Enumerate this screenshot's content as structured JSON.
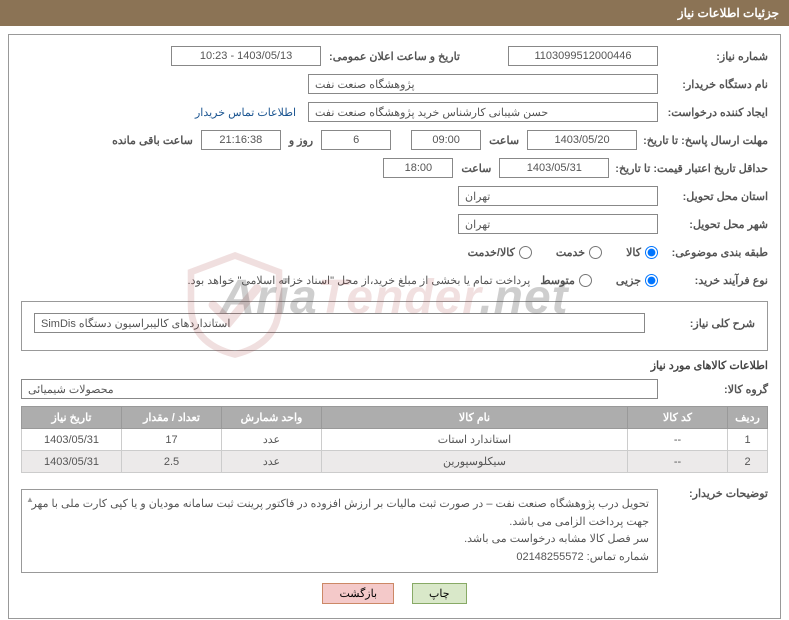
{
  "panel_title": "جزئیات اطلاعات نیاز",
  "labels": {
    "need_no": "شماره نیاز:",
    "announce_dt": "تاریخ و ساعت اعلان عمومی:",
    "buyer_org": "نام دستگاه خریدار:",
    "requester": "ایجاد کننده درخواست:",
    "contact_link": "اطلاعات تماس خریدار",
    "deadline": "مهلت ارسال پاسخ:",
    "until_date": "تا تاریخ:",
    "time": "ساعت",
    "days_and": "روز و",
    "remaining": "ساعت باقی مانده",
    "price_valid": "حداقل تاریخ اعتبار قیمت:",
    "to_date": "تا تاریخ:",
    "province": "استان محل تحویل:",
    "city": "شهر محل تحویل:",
    "subject_class": "طبقه بندی موضوعی:",
    "purchase_type": "نوع فرآیند خرید:",
    "payment_note": "پرداخت تمام یا بخشی از مبلغ خرید،از محل \"اسناد خزانه اسلامی\" خواهد بود.",
    "general_desc": "شرح کلی نیاز:",
    "goods_info": "اطلاعات کالاهای مورد نیاز",
    "goods_group": "گروه کالا:",
    "buyer_notes": "توضیحات خریدار:"
  },
  "values": {
    "need_no": "1103099512000446",
    "announce_dt": "1403/05/13 - 10:23",
    "buyer_org": "پژوهشگاه صنعت نفت",
    "requester": "حسن شیبانی کارشناس خرید پژوهشگاه صنعت نفت",
    "deadline_date": "1403/05/20",
    "deadline_time": "09:00",
    "remaining_days": "6",
    "remaining_time": "21:16:38",
    "price_valid_date": "1403/05/31",
    "price_valid_time": "18:00",
    "province": "تهران",
    "city": "تهران",
    "general_desc": "استانداردهای کالیبراسیون دستگاه SimDis",
    "goods_group": "محصولات شیمیائی",
    "notes_line1": "تحویل درب پژوهشگاه صنعت نفت – در صورت ثبت مالیات بر ارزش افزوده در فاکتور پرینت ثبت سامانه مودیان و یا کپی کارت ملی با مهر جهت پرداخت الزامی می باشد.",
    "notes_line2": "سر فصل کالا مشابه درخواست می باشد.",
    "notes_line3": "شماره تماس: 02148255572"
  },
  "radios": {
    "goods": "کالا",
    "service": "خدمت",
    "goods_service": "کالا/خدمت",
    "small": "جزیی",
    "medium": "متوسط"
  },
  "table": {
    "headers": {
      "row": "ردیف",
      "code": "کد کالا",
      "name": "نام کالا",
      "unit": "واحد شمارش",
      "qty": "تعداد / مقدار",
      "date": "تاریخ نیاز"
    },
    "rows": [
      {
        "row": "1",
        "code": "--",
        "name": "استاندارد استات",
        "unit": "عدد",
        "qty": "17",
        "date": "1403/05/31"
      },
      {
        "row": "2",
        "code": "--",
        "name": "سیکلوسپورین",
        "unit": "عدد",
        "qty": "2.5",
        "date": "1403/05/31"
      }
    ]
  },
  "buttons": {
    "print": "چاپ",
    "back": "بازگشت"
  },
  "watermark": "AriaTender.net"
}
